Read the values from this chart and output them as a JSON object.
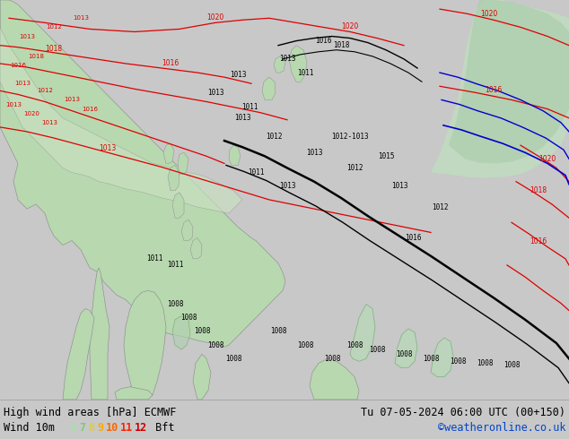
{
  "title_left": "High wind areas [hPa] ECMWF",
  "title_right": "Tu 07-05-2024 06:00 UTC (00+150)",
  "subtitle_left": "Wind 10m",
  "subtitle_right": "©weatheronline.co.uk",
  "bft_numbers": [
    "6",
    "7",
    "8",
    "9",
    "10",
    "11",
    "12"
  ],
  "bft_colors": [
    "#aaddaa",
    "#77cc77",
    "#ddcc44",
    "#ffaa00",
    "#ff6600",
    "#ff2200",
    "#cc0000"
  ],
  "figsize": [
    6.34,
    4.9
  ],
  "dpi": 100,
  "bg_color": "#c8c8c8",
  "ocean_color": "#d8dde8",
  "land_color": "#b8d8b0",
  "land_color2": "#c8e0c0",
  "bottom_bar_color": "#e8e8e8",
  "text_color": "#000000",
  "font_size_title": 8.5,
  "font_size_legend": 8.5,
  "copyright_color": "#0044cc"
}
